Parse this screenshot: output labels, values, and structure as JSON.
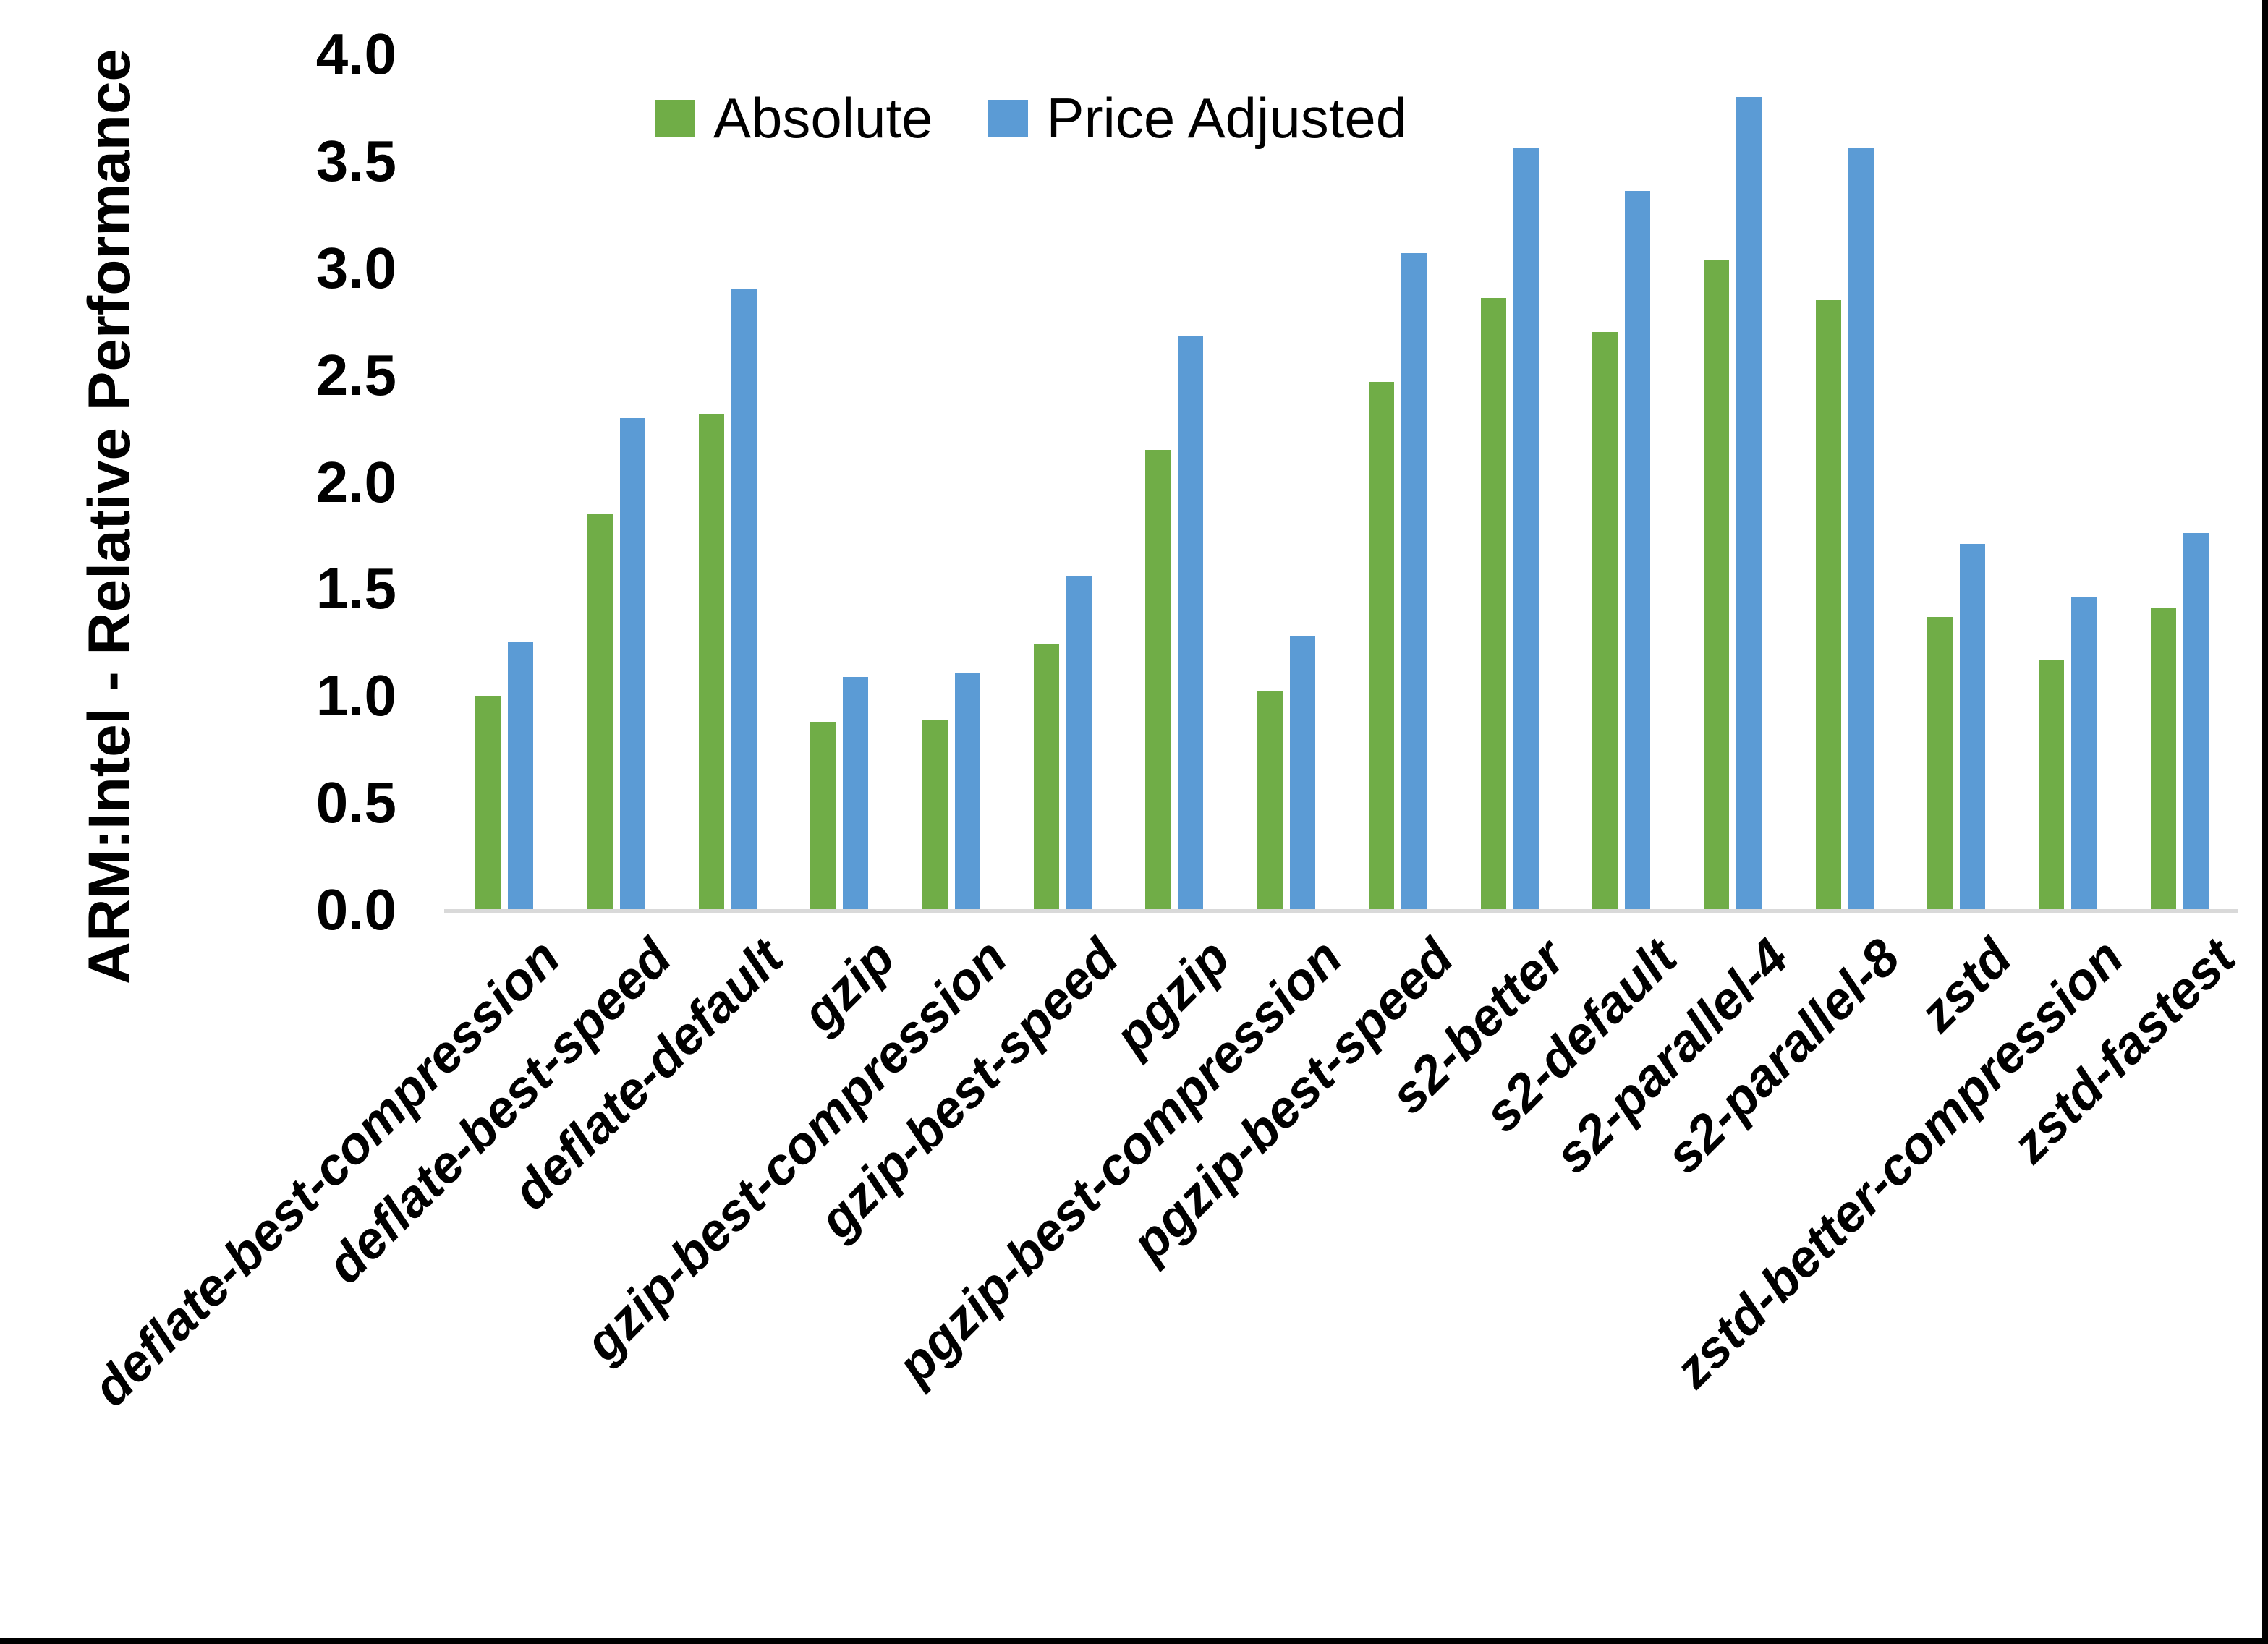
{
  "page": {
    "background": "#FFFFFF",
    "edge_border_color": "#000000"
  },
  "chart_data": {
    "type": "bar",
    "title": "",
    "xlabel": "",
    "ylabel": "ARM:Intel - Relative Performance",
    "ylim": [
      0.0,
      4.0
    ],
    "ytick_step": 0.5,
    "yticks": [
      "0.0",
      "0.5",
      "1.0",
      "1.5",
      "2.0",
      "2.5",
      "3.0",
      "3.5",
      "4.0"
    ],
    "grid": false,
    "legend_position": "top-center",
    "axis_line_color": "#D9D9D9",
    "categories": [
      "deflate-best-compression",
      "deflate-best-speed",
      "deflate-default",
      "gzip",
      "gzip-best-compression",
      "gzip-best-speed",
      "pgzip",
      "pgzip-best-compression",
      "pgzip-best-speed",
      "s2-better",
      "s2-default",
      "s2-parallel-4",
      "s2-parallel-8",
      "zstd",
      "zstd-better-compression",
      "zstd-fastest"
    ],
    "series": [
      {
        "name": "Absolute",
        "color": "#70AD47",
        "values": [
          1.0,
          1.85,
          2.32,
          0.88,
          0.89,
          1.24,
          2.15,
          1.02,
          2.47,
          2.86,
          2.7,
          3.04,
          2.85,
          1.37,
          1.17,
          1.41
        ]
      },
      {
        "name": "Price Adjusted",
        "color": "#5B9BD5",
        "values": [
          1.25,
          2.3,
          2.9,
          1.09,
          1.11,
          1.56,
          2.68,
          1.28,
          3.07,
          3.56,
          3.36,
          3.8,
          3.56,
          1.71,
          1.46,
          1.76
        ]
      }
    ]
  }
}
